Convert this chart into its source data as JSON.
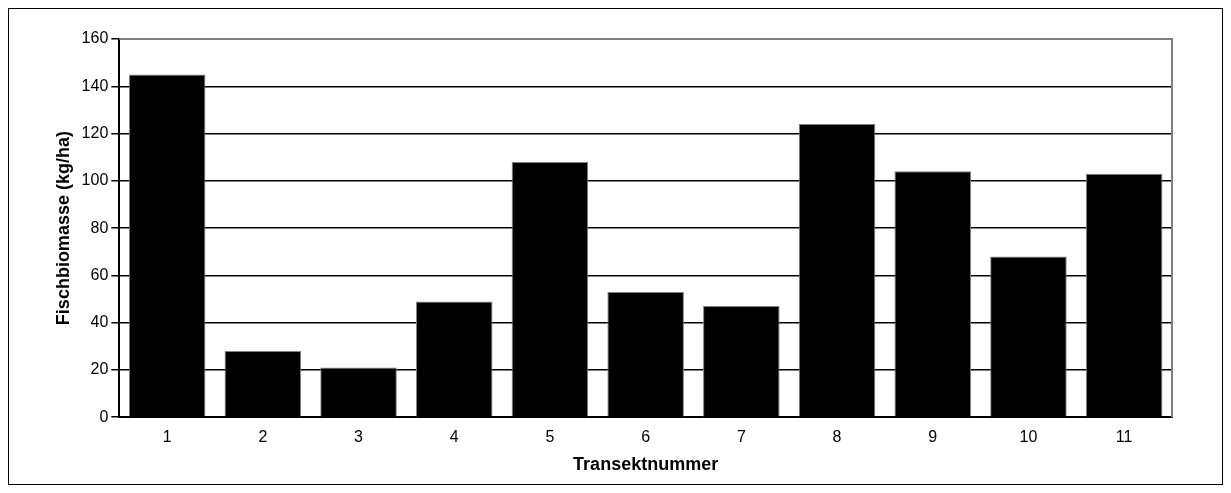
{
  "chart_data": {
    "type": "bar",
    "xlabel": "Transektnummer",
    "ylabel": "Fischbiomasse (kg/ha)",
    "categories": [
      "1",
      "2",
      "3",
      "4",
      "5",
      "6",
      "7",
      "8",
      "9",
      "10",
      "11"
    ],
    "values": [
      145,
      28,
      21,
      49,
      108,
      53,
      47,
      124,
      104,
      68,
      103
    ],
    "color": "#000000",
    "ylim": [
      0,
      160
    ],
    "yticks": [
      0,
      20,
      40,
      60,
      80,
      100,
      120,
      140,
      160
    ],
    "grid": "y",
    "legend": false
  }
}
